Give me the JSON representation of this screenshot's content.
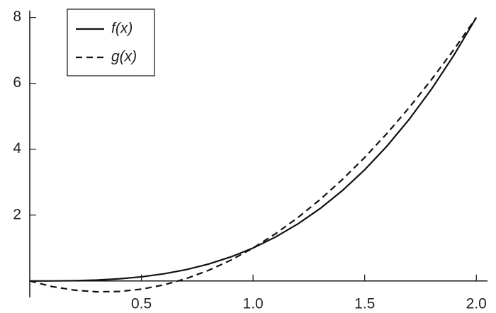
{
  "chart_data": {
    "type": "line",
    "x": [
      0,
      0.1,
      0.2,
      0.3,
      0.4,
      0.5,
      0.6,
      0.7,
      0.8,
      0.9,
      1.0,
      1.1,
      1.2,
      1.3,
      1.4,
      1.5,
      1.6,
      1.7,
      1.8,
      1.9,
      2.0
    ],
    "series": [
      {
        "name": "f(x)",
        "color": "#111111",
        "dash": "solid",
        "values": [
          0,
          0.001,
          0.008,
          0.027,
          0.064,
          0.125,
          0.216,
          0.343,
          0.512,
          0.729,
          1,
          1.331,
          1.728,
          2.197,
          2.744,
          3.375,
          4.096,
          4.913,
          5.832,
          6.859,
          8
        ]
      },
      {
        "name": "g(x)",
        "color": "#111111",
        "dash": "dashed",
        "values": [
          0,
          -0.17,
          -0.28,
          -0.33,
          -0.32,
          -0.25,
          -0.12,
          0.07,
          0.32,
          0.63,
          1,
          1.43,
          1.92,
          2.47,
          3.08,
          3.75,
          4.48,
          5.27,
          6.12,
          7.03,
          8
        ]
      }
    ],
    "xlim": [
      0,
      2.05
    ],
    "ylim": [
      -0.5,
      8.1
    ],
    "xticks": [
      0.5,
      {
        "value": 1,
        "label": "1.0"
      },
      1.5,
      {
        "value": 2,
        "label": "2.0"
      }
    ],
    "yticks": [
      2,
      4,
      6,
      8
    ],
    "legend": "upper left"
  }
}
